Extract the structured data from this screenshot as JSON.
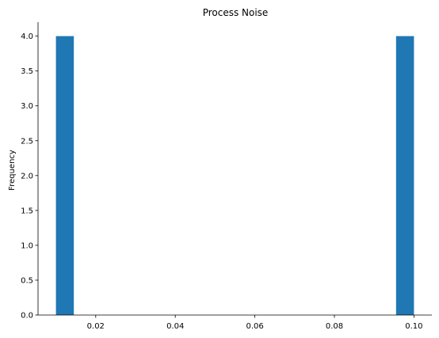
{
  "chart_data": {
    "type": "bar",
    "title": "Process Noise",
    "xlabel": "",
    "ylabel": "Frequency",
    "bins": [
      {
        "x0": 0.01,
        "x1": 0.0145,
        "count": 4
      },
      {
        "x0": 0.0955,
        "x1": 0.1,
        "count": 4
      }
    ],
    "xlim": [
      0.0055,
      0.1045
    ],
    "ylim": [
      0,
      4.2
    ],
    "xticks": [
      0.02,
      0.04,
      0.06,
      0.08,
      0.1
    ],
    "xtick_labels": [
      "0.02",
      "0.04",
      "0.06",
      "0.08",
      "0.10"
    ],
    "yticks": [
      0,
      0.5,
      1.0,
      1.5,
      2.0,
      2.5,
      3.0,
      3.5,
      4.0
    ],
    "ytick_labels": [
      "0.0",
      "0.5",
      "1.0",
      "1.5",
      "2.0",
      "2.5",
      "3.0",
      "3.5",
      "4.0"
    ],
    "bar_color": "#1f77b4",
    "grid": false,
    "spines": "left-bottom"
  }
}
